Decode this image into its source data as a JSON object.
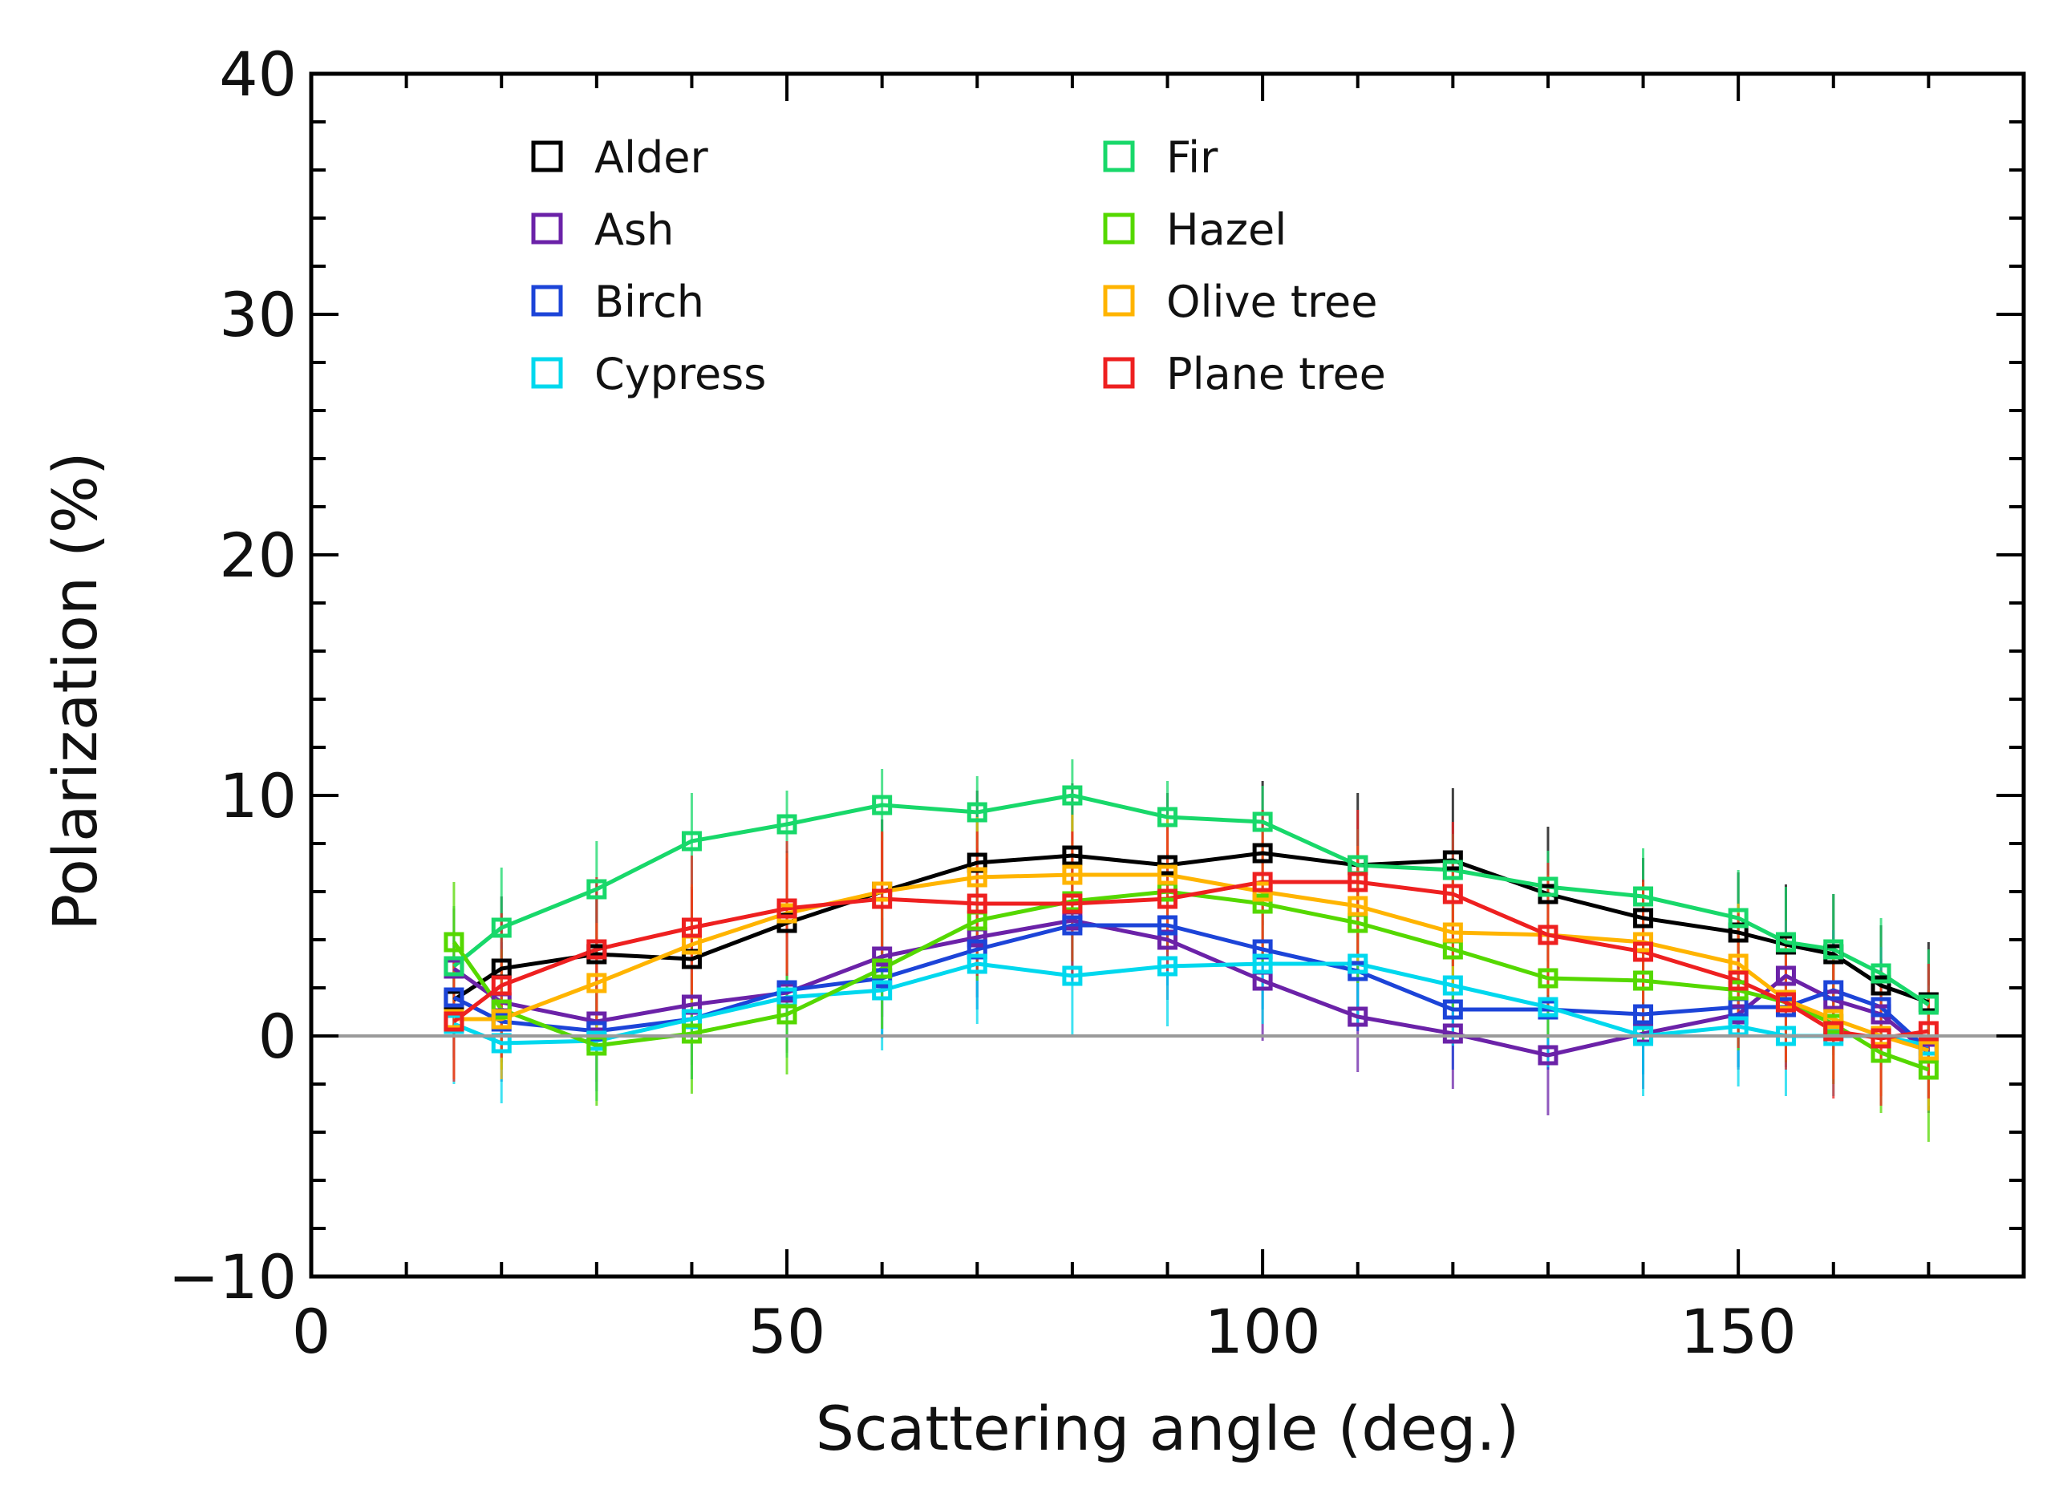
{
  "chart_data": {
    "type": "line",
    "title": "",
    "xlabel": "Scattering angle (deg.)",
    "ylabel": "Polarization (%)",
    "xlim": [
      0,
      180
    ],
    "ylim": [
      -10,
      40
    ],
    "xticks": [
      0,
      50,
      100,
      150
    ],
    "yticks": [
      -10,
      0,
      10,
      20,
      30,
      40
    ],
    "ytick_labels": [
      "−10",
      "0",
      "10",
      "20",
      "30",
      "40"
    ],
    "xtick_labels": [
      "0",
      "50",
      "100",
      "150"
    ],
    "zero_line": true,
    "x": [
      15,
      20,
      30,
      40,
      50,
      60,
      70,
      80,
      90,
      100,
      110,
      120,
      130,
      140,
      150,
      155,
      160,
      165,
      170
    ],
    "series": [
      {
        "name": "Alder",
        "color": "#000000",
        "values": [
          1.5,
          2.8,
          3.4,
          3.2,
          4.7,
          6.0,
          7.2,
          7.5,
          7.1,
          7.6,
          7.1,
          7.3,
          5.9,
          4.9,
          4.3,
          3.8,
          3.4,
          2.1,
          1.4
        ],
        "errors": [
          2.5,
          3.0,
          3.0,
          3.0,
          3.0,
          3.0,
          3.0,
          3.0,
          3.0,
          3.0,
          3.0,
          3.0,
          2.8,
          2.5,
          2.5,
          2.5,
          2.5,
          2.5,
          2.5
        ]
      },
      {
        "name": "Ash",
        "color": "#6b22a8",
        "values": [
          2.8,
          1.4,
          0.6,
          1.3,
          1.8,
          3.3,
          4.1,
          4.8,
          4.0,
          2.3,
          0.8,
          0.1,
          -0.8,
          0.1,
          0.9,
          2.5,
          1.5,
          0.9,
          -0.7
        ],
        "errors": [
          2.5,
          2.5,
          2.5,
          2.5,
          2.5,
          2.5,
          2.5,
          2.5,
          2.5,
          2.5,
          2.3,
          2.3,
          2.5,
          2.3,
          2.3,
          2.3,
          2.3,
          2.3,
          2.5
        ]
      },
      {
        "name": "Birch",
        "color": "#1c44d8",
        "values": [
          1.6,
          0.6,
          0.2,
          0.7,
          1.9,
          2.4,
          3.6,
          4.6,
          4.6,
          3.6,
          2.7,
          1.1,
          1.1,
          0.9,
          1.2,
          1.2,
          1.9,
          1.2,
          -0.6
        ],
        "errors": [
          2.5,
          2.5,
          2.5,
          2.5,
          2.5,
          2.5,
          2.5,
          2.5,
          2.5,
          2.5,
          2.5,
          2.5,
          2.5,
          2.5,
          2.5,
          2.5,
          2.5,
          2.5,
          2.5
        ]
      },
      {
        "name": "Cypress",
        "color": "#00d8ee",
        "values": [
          0.5,
          -0.3,
          -0.2,
          0.7,
          1.6,
          1.9,
          3.0,
          2.5,
          2.9,
          3.0,
          3.0,
          2.1,
          1.2,
          0.0,
          0.4,
          0.0,
          0.0,
          0.0,
          -0.4
        ],
        "errors": [
          2.5,
          2.5,
          2.5,
          2.5,
          2.5,
          2.5,
          2.5,
          2.5,
          2.5,
          2.5,
          2.5,
          2.5,
          2.5,
          2.5,
          2.5,
          2.5,
          2.5,
          2.5,
          2.5
        ]
      },
      {
        "name": "Fir",
        "color": "#18d86a",
        "values": [
          2.9,
          4.5,
          6.1,
          8.1,
          8.8,
          9.6,
          9.3,
          10.0,
          9.1,
          8.9,
          7.1,
          6.9,
          6.2,
          5.8,
          4.9,
          3.9,
          3.6,
          2.6,
          1.3
        ],
        "errors": [
          2.5,
          2.5,
          2.0,
          2.0,
          1.4,
          1.5,
          1.5,
          1.5,
          1.5,
          1.5,
          1.5,
          1.5,
          1.5,
          2.0,
          2.0,
          2.3,
          2.3,
          2.3,
          2.3
        ]
      },
      {
        "name": "Hazel",
        "color": "#55d800",
        "values": [
          3.9,
          1.1,
          -0.4,
          0.1,
          0.9,
          2.8,
          4.8,
          5.6,
          6.0,
          5.5,
          4.7,
          3.6,
          2.4,
          2.3,
          1.9,
          1.4,
          0.5,
          -0.7,
          -1.4
        ],
        "errors": [
          2.5,
          2.5,
          2.5,
          2.5,
          2.5,
          2.5,
          2.5,
          2.5,
          2.5,
          2.5,
          2.5,
          2.5,
          2.5,
          2.5,
          2.5,
          2.5,
          2.5,
          2.5,
          3.0
        ]
      },
      {
        "name": "Olive tree",
        "color": "#ffb400",
        "values": [
          0.7,
          0.7,
          2.2,
          3.8,
          5.1,
          6.0,
          6.6,
          6.7,
          6.7,
          6.0,
          5.4,
          4.3,
          4.2,
          3.9,
          3.0,
          1.5,
          0.7,
          0.0,
          -0.6
        ],
        "errors": [
          2.5,
          2.5,
          2.5,
          2.5,
          2.5,
          2.5,
          2.5,
          2.5,
          2.5,
          2.5,
          2.5,
          2.5,
          2.5,
          2.5,
          2.5,
          2.5,
          2.5,
          2.5,
          2.5
        ]
      },
      {
        "name": "Plane tree",
        "color": "#ee2020",
        "values": [
          0.6,
          2.1,
          3.6,
          4.5,
          5.3,
          5.7,
          5.5,
          5.5,
          5.7,
          6.4,
          6.4,
          5.9,
          4.2,
          3.5,
          2.3,
          1.4,
          0.2,
          -0.1,
          0.2
        ],
        "errors": [
          2.5,
          3.0,
          3.0,
          3.0,
          2.8,
          2.8,
          3.0,
          3.0,
          3.0,
          3.0,
          3.0,
          3.0,
          3.0,
          3.0,
          2.8,
          2.8,
          2.8,
          2.8,
          2.8
        ]
      }
    ],
    "legend": {
      "placement": "top-left",
      "columns": 2
    }
  }
}
